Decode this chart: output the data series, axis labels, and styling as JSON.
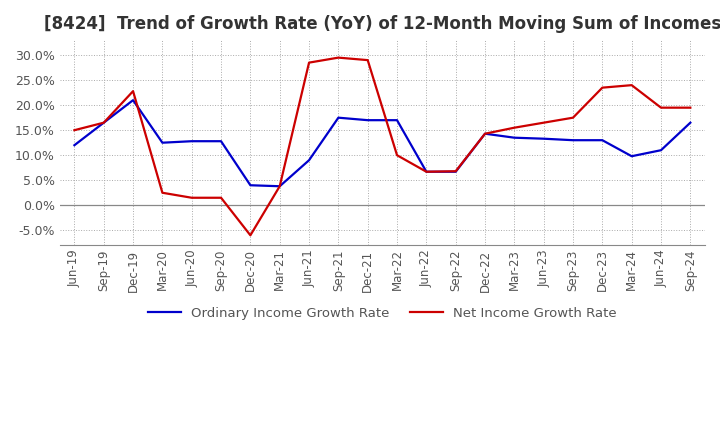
{
  "title": "[8424]  Trend of Growth Rate (YoY) of 12-Month Moving Sum of Incomes",
  "title_fontsize": 12,
  "ylim": [
    -0.08,
    0.33
  ],
  "yticks": [
    -0.05,
    0.0,
    0.05,
    0.1,
    0.15,
    0.2,
    0.25,
    0.3
  ],
  "background_color": "#ffffff",
  "grid_color": "#aaaaaa",
  "ordinary_income_color": "#0000cc",
  "net_income_color": "#cc0000",
  "line_width": 1.6,
  "dates": [
    "Jun-19",
    "Sep-19",
    "Dec-19",
    "Mar-20",
    "Jun-20",
    "Sep-20",
    "Dec-20",
    "Mar-21",
    "Jun-21",
    "Sep-21",
    "Dec-21",
    "Mar-22",
    "Jun-22",
    "Sep-22",
    "Dec-22",
    "Mar-23",
    "Jun-23",
    "Sep-23",
    "Dec-23",
    "Mar-24",
    "Jun-24",
    "Sep-24"
  ],
  "ordinary_income": [
    0.12,
    0.165,
    0.21,
    0.125,
    0.128,
    0.128,
    0.04,
    0.038,
    0.09,
    0.175,
    0.17,
    0.17,
    0.067,
    0.067,
    0.143,
    0.135,
    0.133,
    0.13,
    0.13,
    0.098,
    0.11,
    0.165
  ],
  "net_income": [
    0.15,
    0.165,
    0.228,
    0.025,
    0.015,
    0.015,
    -0.06,
    0.038,
    0.285,
    0.295,
    0.29,
    0.1,
    0.067,
    0.068,
    0.143,
    0.155,
    0.165,
    0.175,
    0.235,
    0.24,
    0.195,
    0.195
  ],
  "legend_labels": [
    "Ordinary Income Growth Rate",
    "Net Income Growth Rate"
  ]
}
